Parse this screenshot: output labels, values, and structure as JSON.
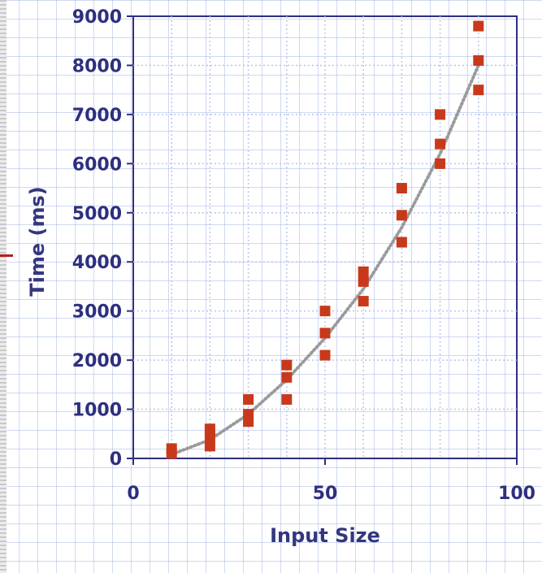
{
  "chart_data": {
    "type": "scatter",
    "title": "",
    "xlabel": "Input Size",
    "ylabel": "Time (ms)",
    "xlim": [
      0,
      100
    ],
    "ylim": [
      0,
      9000
    ],
    "x_ticks": [
      0,
      50,
      100
    ],
    "y_ticks": [
      0,
      1000,
      2000,
      3000,
      4000,
      5000,
      6000,
      7000,
      8000,
      9000
    ],
    "grid": true,
    "legend": "none",
    "series": [
      {
        "kind": "points",
        "color": "#c8391b",
        "points": [
          {
            "x": 10,
            "y": 100
          },
          {
            "x": 10,
            "y": 200
          },
          {
            "x": 20,
            "y": 250
          },
          {
            "x": 20,
            "y": 450
          },
          {
            "x": 20,
            "y": 600
          },
          {
            "x": 30,
            "y": 750
          },
          {
            "x": 30,
            "y": 900
          },
          {
            "x": 30,
            "y": 1200
          },
          {
            "x": 40,
            "y": 1200
          },
          {
            "x": 40,
            "y": 1650
          },
          {
            "x": 40,
            "y": 1900
          },
          {
            "x": 50,
            "y": 2100
          },
          {
            "x": 50,
            "y": 2550
          },
          {
            "x": 50,
            "y": 3000
          },
          {
            "x": 60,
            "y": 3200
          },
          {
            "x": 60,
            "y": 3600
          },
          {
            "x": 60,
            "y": 3800
          },
          {
            "x": 70,
            "y": 4400
          },
          {
            "x": 70,
            "y": 4950
          },
          {
            "x": 70,
            "y": 5500
          },
          {
            "x": 80,
            "y": 6000
          },
          {
            "x": 80,
            "y": 6400
          },
          {
            "x": 80,
            "y": 7000
          },
          {
            "x": 90,
            "y": 7500
          },
          {
            "x": 90,
            "y": 8100
          },
          {
            "x": 90,
            "y": 8800
          }
        ]
      },
      {
        "kind": "trend",
        "style": "dotted",
        "color": "#9a9a9a",
        "points": [
          {
            "x": 10,
            "y": 80
          },
          {
            "x": 20,
            "y": 380
          },
          {
            "x": 30,
            "y": 900
          },
          {
            "x": 40,
            "y": 1600
          },
          {
            "x": 50,
            "y": 2450
          },
          {
            "x": 60,
            "y": 3450
          },
          {
            "x": 70,
            "y": 4700
          },
          {
            "x": 80,
            "y": 6200
          },
          {
            "x": 90,
            "y": 8000
          }
        ]
      }
    ]
  },
  "colors": {
    "axis": "#2d2f7e",
    "tick_text": "#2d2f7e",
    "marker": "#c8391b",
    "trendline": "#9a9a9a",
    "grid": "#b9c6ec"
  }
}
